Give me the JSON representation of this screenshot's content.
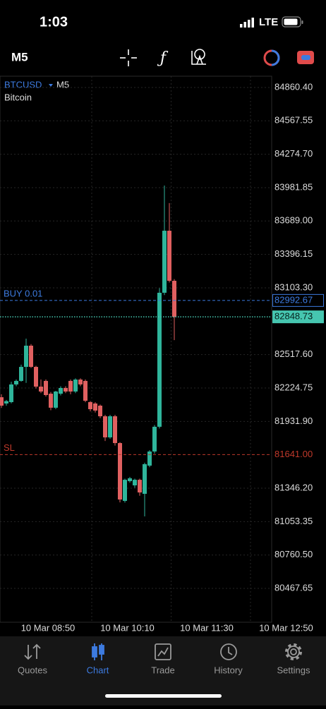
{
  "status_bar": {
    "time": "1:03",
    "network": "LTE"
  },
  "toolbar": {
    "timeframe": "M5"
  },
  "chart_data": {
    "type": "candlestick",
    "symbol": "BTCUSD",
    "timeframe": "M5",
    "description": "Bitcoin",
    "open": [
      82144,
      82089,
      82101,
      82256,
      82287,
      82410,
      82596,
      82410,
      82237,
      82287,
      82175,
      82052,
      82175,
      82225,
      82287,
      82194,
      82299,
      82287,
      82101,
      82089,
      82070,
      81977,
      81792,
      81977,
      81742,
      81235,
      81408,
      81371,
      81420,
      81297,
      81544,
      81668,
      81885,
      83060,
      83604,
      83165
    ],
    "high": [
      82170,
      82120,
      82280,
      82300,
      82430,
      82658,
      82610,
      82420,
      82300,
      82300,
      82190,
      82200,
      82240,
      82240,
      82300,
      82310,
      82310,
      82300,
      82110,
      82100,
      82080,
      81990,
      81990,
      81990,
      81750,
      81430,
      81445,
      81430,
      81430,
      81570,
      81680,
      81900,
      83100,
      84000,
      83846,
      83180
    ],
    "low": [
      82050,
      82070,
      82090,
      82240,
      82280,
      82270,
      82400,
      82220,
      82180,
      82150,
      82030,
      82040,
      82160,
      82180,
      82170,
      82180,
      82240,
      82100,
      82020,
      82010,
      81960,
      81760,
      81780,
      81720,
      81222,
      81220,
      81395,
      81350,
      81280,
      81099,
      81530,
      81650,
      81870,
      83040,
      83150,
      82645
    ],
    "close": [
      82070,
      82110,
      82256,
      82287,
      82410,
      82596,
      82410,
      82237,
      82194,
      82163,
      82052,
      82194,
      82225,
      82194,
      82194,
      82299,
      82256,
      82113,
      82039,
      82027,
      81977,
      81792,
      81977,
      81742,
      81247,
      81420,
      81433,
      81420,
      81309,
      81557,
      81668,
      81885,
      83060,
      83604,
      83165,
      82848.73
    ],
    "up_color": "#2fb59b",
    "down_color": "#e06060",
    "ylim": [
      80171,
      84959
    ],
    "yticks": [
      {
        "value": 84860.4,
        "label": "84860.40"
      },
      84567.55,
      {
        "value": 84274.7,
        "label": "84274.70"
      },
      83981.85,
      {
        "value": 83689,
        "label": "83689.00"
      },
      83396.15,
      {
        "value": 83103.3,
        "label": "83103.30"
      },
      {
        "value": 82517.6,
        "label": "82517.60"
      },
      82224.75,
      {
        "value": 81931.9,
        "label": "81931.90"
      },
      {
        "value": 81346.2,
        "label": "81346.20"
      },
      81053.35,
      {
        "value": 80760.5,
        "label": "80760.50"
      },
      80467.65
    ],
    "grid": true,
    "x_labels": [
      "10 Mar 08:50",
      "10 Mar 10:10",
      "10 Mar 11:30",
      "10 Mar 12:50"
    ],
    "levels": [
      {
        "name": "BUY 0.01",
        "value": 82992.67,
        "color": "#3d7be0",
        "style": "dashed"
      },
      {
        "value": 82848.73,
        "color": "#46c6b0",
        "style": "dotted",
        "highlight": true
      },
      {
        "name": "SL",
        "value": 81641,
        "value_label": "81641.00",
        "color": "#c0392b",
        "style": "dashed"
      }
    ]
  },
  "tabs": [
    {
      "label": "Quotes"
    },
    {
      "label": "Chart",
      "active": true
    },
    {
      "label": "Trade"
    },
    {
      "label": "History"
    },
    {
      "label": "Settings"
    }
  ]
}
